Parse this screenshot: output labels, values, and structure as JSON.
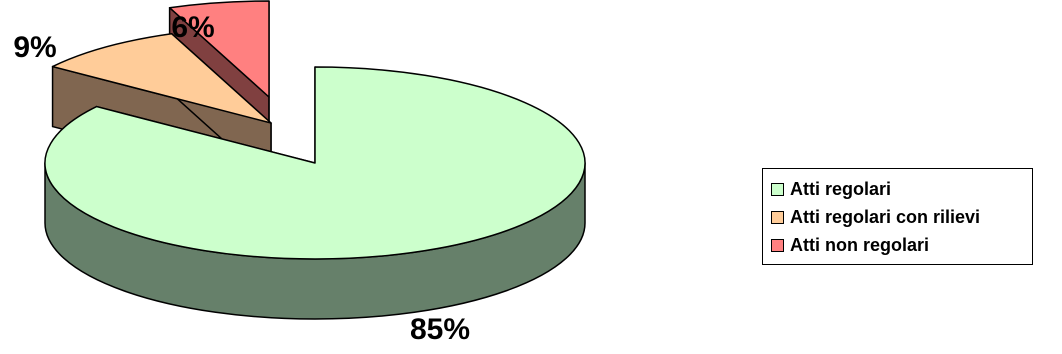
{
  "chart_data": {
    "type": "pie",
    "style": "3d-exploded",
    "categories": [
      "Atti regolari",
      "Atti regolari con rilievi",
      "Atti non regolari"
    ],
    "values": [
      85,
      9,
      6
    ],
    "labels": [
      "85%",
      "9%",
      "6%"
    ],
    "colors": {
      "top": [
        "#CCFFCC",
        "#FFCC99",
        "#FF8080"
      ],
      "side": [
        "#66806A",
        "#806650",
        "#804040"
      ]
    },
    "legend_position": "right"
  }
}
